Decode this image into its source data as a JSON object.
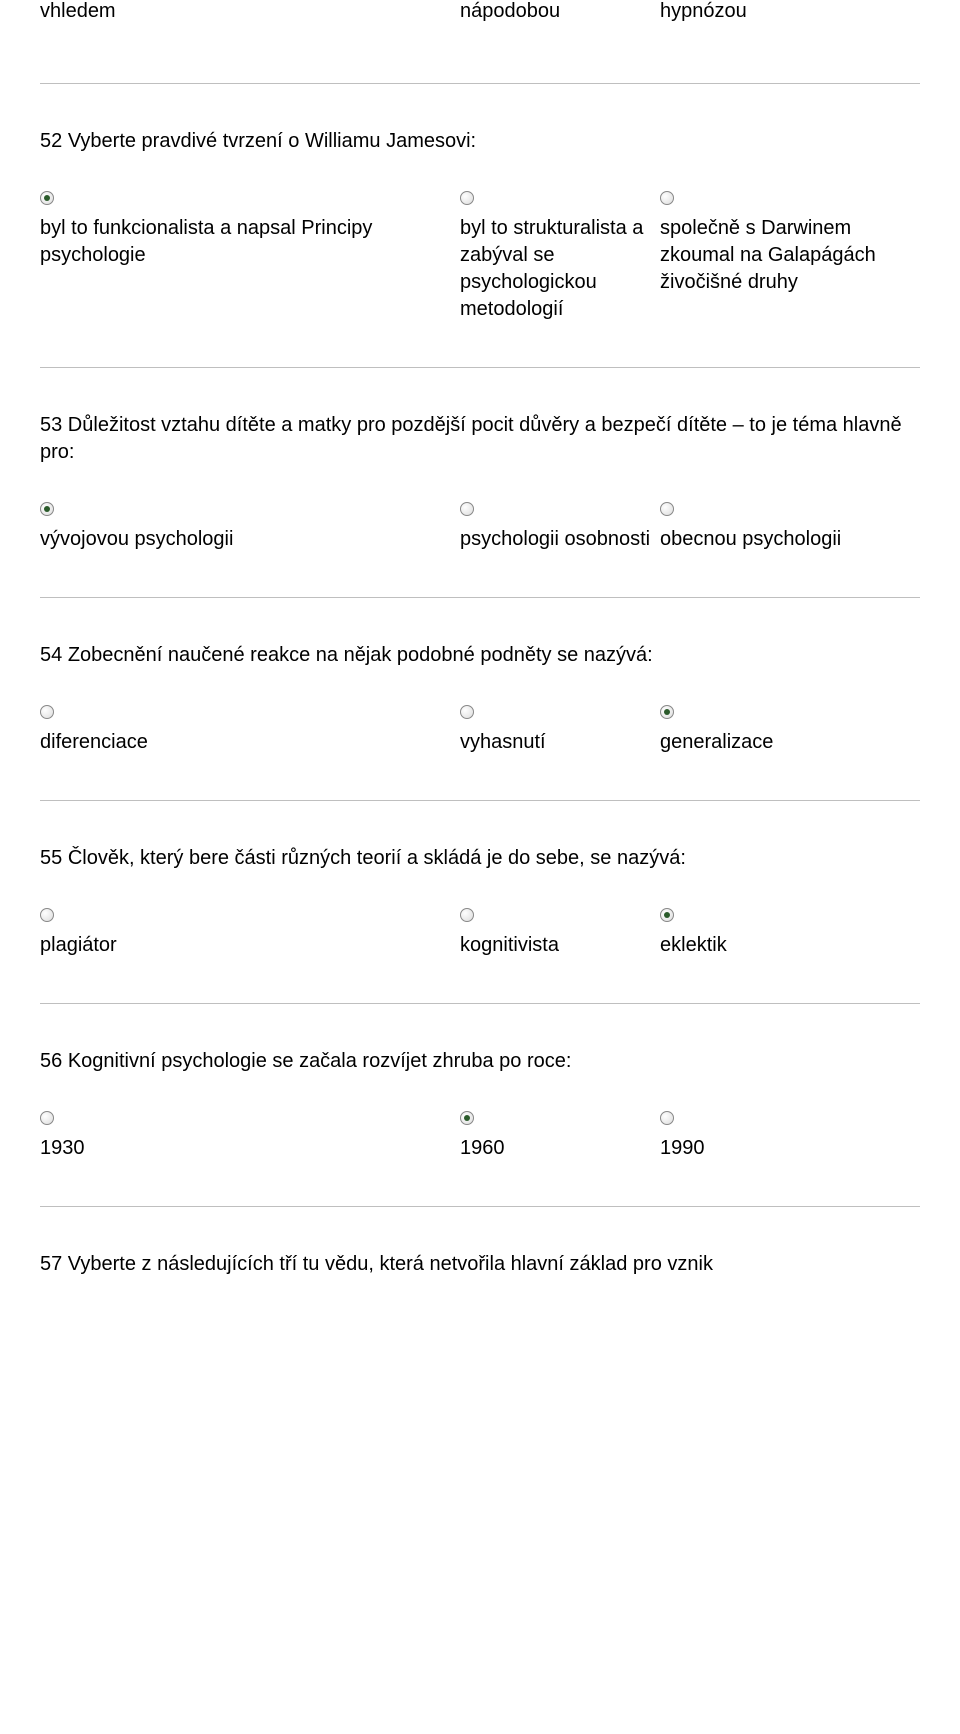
{
  "colors": {
    "text": "#000000",
    "background": "#ffffff",
    "rule": "#bfbfbf",
    "radio_border": "#888888",
    "radio_dot": "#2a5a2a"
  },
  "typography": {
    "font_family": "Trebuchet MS",
    "body_fontsize_pt": 15
  },
  "top_row": {
    "c0": "vhledem",
    "c1": "nápodobou",
    "c2": "hypnózou"
  },
  "questions": [
    {
      "num": "52",
      "text": "Vyberte pravdivé tvrzení o Williamu Jamesovi:",
      "selected": 0,
      "options": [
        "byl to funkcionalista a napsal Principy psychologie",
        "byl to strukturalista a zabýval se psychologickou metodologií",
        "společně s Darwinem zkoumal na Galapágách živočišné druhy"
      ]
    },
    {
      "num": "53",
      "text": " Důležitost vztahu dítěte a matky pro pozdější pocit důvěry a bezpečí dítěte – to je téma hlavně pro:",
      "selected": 0,
      "options": [
        "vývojovou psychologii",
        "psychologii osobnosti",
        "obecnou psychologii"
      ]
    },
    {
      "num": "54",
      "text": "Zobecnění naučené reakce na nějak podobné podněty se nazývá:",
      "selected": 2,
      "options": [
        "diferenciace",
        "vyhasnutí",
        "generalizace"
      ]
    },
    {
      "num": "55",
      "text": "Člověk, který bere části různých teorií a skládá je do sebe, se nazývá:",
      "selected": 2,
      "options": [
        "plagiátor",
        "kognitivista",
        "eklektik"
      ]
    },
    {
      "num": "56",
      "text": "Kognitivní psychologie se začala rozvíjet zhruba po roce:",
      "selected": 1,
      "options": [
        "1930",
        "1960",
        "1990"
      ]
    },
    {
      "num": "57",
      "text": " Vyberte z následujících tří tu vědu, která netvořila hlavní základ pro vznik",
      "selected": -1,
      "options": []
    }
  ]
}
